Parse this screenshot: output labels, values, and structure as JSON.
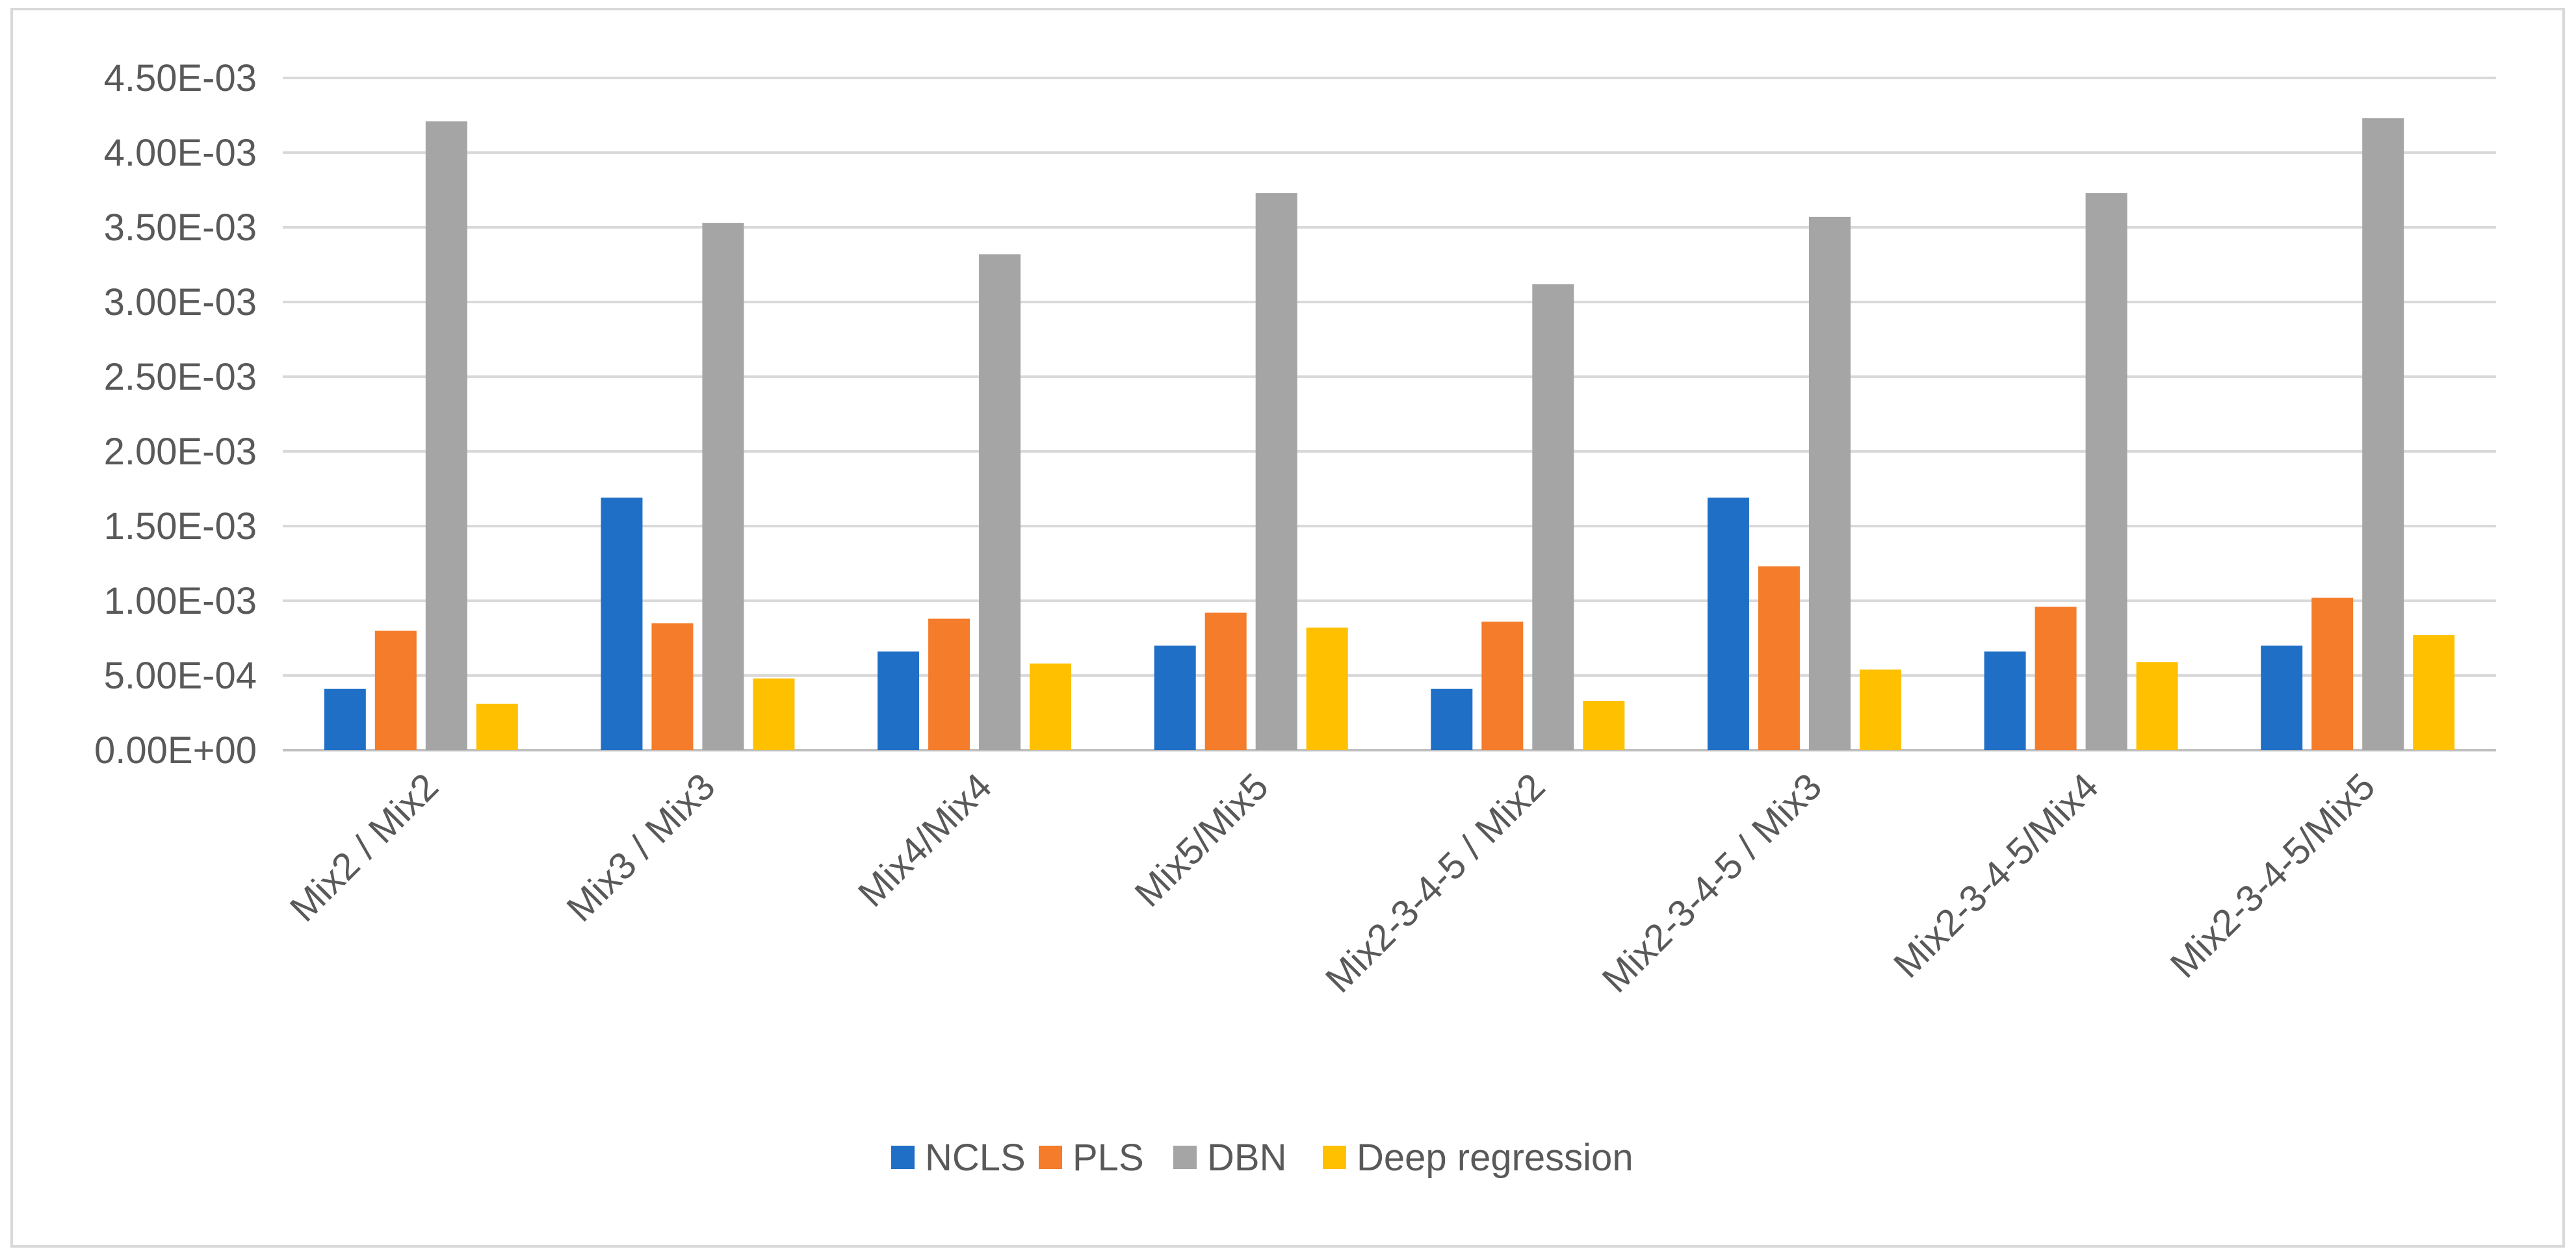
{
  "chart_data": {
    "type": "bar",
    "title": "",
    "xlabel": "",
    "ylabel": "",
    "categories": [
      "Mix2 / Mix2",
      "Mix3 / Mix3",
      "Mix4/Mix4",
      "Mix5/Mix5",
      "Mix2-3-4-5 / Mix2",
      "Mix2-3-4-5 / Mix3",
      "Mix2-3-4-5/Mix4",
      "Mix2-3-4-5/Mix5"
    ],
    "series": [
      {
        "name": "NCLS",
        "color": "#1F6FC6",
        "values": [
          0.00041,
          0.00169,
          0.00066,
          0.0007,
          0.00041,
          0.00169,
          0.00066,
          0.0007
        ]
      },
      {
        "name": "PLS",
        "color": "#F47C2B",
        "values": [
          0.0008,
          0.00085,
          0.00088,
          0.00092,
          0.00086,
          0.00123,
          0.00096,
          0.00102
        ]
      },
      {
        "name": "DBN",
        "color": "#A5A5A5",
        "values": [
          0.00421,
          0.00353,
          0.00332,
          0.00373,
          0.00312,
          0.00357,
          0.00373,
          0.00423
        ]
      },
      {
        "name": "Deep regression",
        "color": "#FFC000",
        "values": [
          0.00031,
          0.00048,
          0.00058,
          0.00082,
          0.00033,
          0.00054,
          0.00059,
          0.00077
        ]
      }
    ],
    "ylim": [
      0,
      0.0045
    ],
    "yticks": [
      0,
      0.0005,
      0.001,
      0.0015,
      0.002,
      0.0025,
      0.003,
      0.0035,
      0.004,
      0.0045
    ],
    "ytick_labels": [
      "0.00E+00",
      "5.00E-04",
      "1.00E-03",
      "1.50E-03",
      "2.00E-03",
      "2.50E-03",
      "3.00E-03",
      "3.50E-03",
      "4.00E-03",
      "4.50E-03"
    ],
    "grid": true,
    "legend": "bottom-center"
  }
}
